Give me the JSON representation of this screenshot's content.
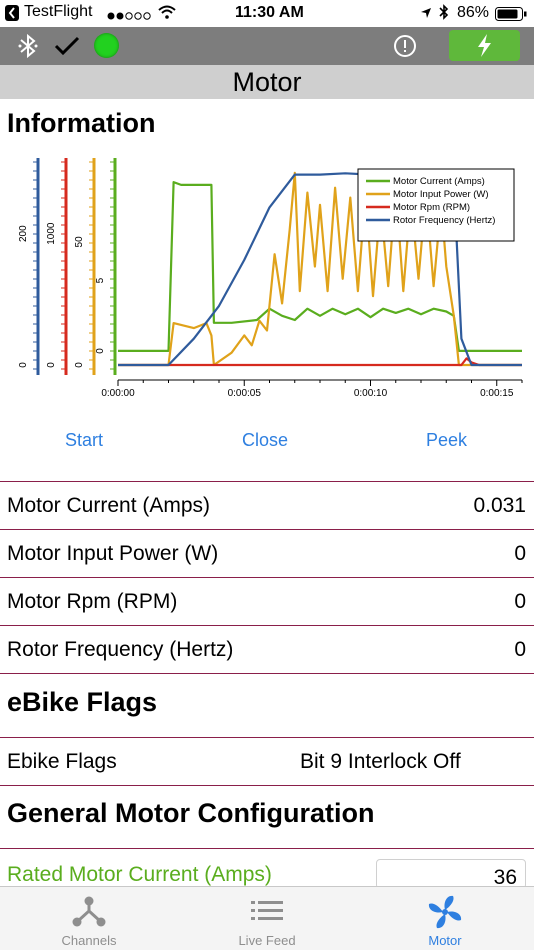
{
  "status_bar": {
    "back_app": "TestFlight",
    "time": "11:30 AM",
    "battery": "86%"
  },
  "page": {
    "title": "Motor"
  },
  "sections": {
    "information": "Information",
    "ebike_flags": "eBike Flags",
    "general_config": "General Motor Configuration"
  },
  "chart_data": {
    "type": "line",
    "x_ticks": [
      "0:00:00",
      "0:00:05",
      "0:00:10",
      "0:00:15"
    ],
    "xlim": [
      0,
      16
    ],
    "axes": [
      {
        "series": "Rotor Frequency (Hertz)",
        "color": "#2f5b9c",
        "ticks": [
          "0",
          "200"
        ],
        "ylim": [
          0,
          300
        ]
      },
      {
        "series": "Motor Rpm (RPM)",
        "color": "#d62a1e",
        "ticks": [
          "0",
          "1000"
        ],
        "ylim": [
          0,
          1500
        ]
      },
      {
        "series": "Motor Input Power (W)",
        "color": "#e0a21a",
        "ticks": [
          "0",
          "50"
        ],
        "ylim": [
          0,
          80
        ]
      },
      {
        "series": "Motor Current (Amps)",
        "color": "#5aad1e",
        "ticks": [
          "0",
          "5"
        ],
        "ylim": [
          -1,
          13
        ]
      }
    ],
    "legend_position": "top-right",
    "series": [
      {
        "name": "Motor Current (Amps)",
        "color": "#5aad1e",
        "points": [
          [
            0,
            0
          ],
          [
            2,
            0
          ],
          [
            2.2,
            12
          ],
          [
            2.5,
            11.8
          ],
          [
            3.5,
            11.8
          ],
          [
            3.7,
            11.8
          ],
          [
            3.8,
            2
          ],
          [
            4.5,
            2
          ],
          [
            5.5,
            2.2
          ],
          [
            6,
            3
          ],
          [
            6.5,
            2.5
          ],
          [
            7,
            2.2
          ],
          [
            7.5,
            3
          ],
          [
            8,
            2.5
          ],
          [
            8.5,
            3
          ],
          [
            9,
            2.6
          ],
          [
            9.5,
            3
          ],
          [
            10,
            2.4
          ],
          [
            10.5,
            3
          ],
          [
            11,
            2.7
          ],
          [
            11.5,
            3
          ],
          [
            12,
            2.6
          ],
          [
            12.5,
            3
          ],
          [
            13,
            2.8
          ],
          [
            13.3,
            2.5
          ],
          [
            13.5,
            0
          ],
          [
            16,
            0
          ]
        ]
      },
      {
        "name": "Motor Input Power (W)",
        "color": "#e0a21a",
        "points": [
          [
            0,
            0
          ],
          [
            2,
            0
          ],
          [
            2.2,
            17
          ],
          [
            3,
            15
          ],
          [
            3.5,
            17
          ],
          [
            3.7,
            12
          ],
          [
            3.8,
            0
          ],
          [
            4.5,
            5
          ],
          [
            5,
            12
          ],
          [
            5.3,
            8
          ],
          [
            5.6,
            18
          ],
          [
            5.9,
            14
          ],
          [
            6.2,
            45
          ],
          [
            6.5,
            25
          ],
          [
            6.8,
            55
          ],
          [
            7,
            78
          ],
          [
            7.2,
            30
          ],
          [
            7.5,
            70
          ],
          [
            7.8,
            40
          ],
          [
            8,
            65
          ],
          [
            8.3,
            30
          ],
          [
            8.6,
            72
          ],
          [
            8.9,
            35
          ],
          [
            9.2,
            68
          ],
          [
            9.5,
            30
          ],
          [
            9.8,
            70
          ],
          [
            10.1,
            28
          ],
          [
            10.4,
            66
          ],
          [
            10.7,
            32
          ],
          [
            11,
            72
          ],
          [
            11.3,
            30
          ],
          [
            11.6,
            68
          ],
          [
            11.9,
            35
          ],
          [
            12.2,
            70
          ],
          [
            12.5,
            32
          ],
          [
            12.8,
            66
          ],
          [
            13,
            40
          ],
          [
            13.3,
            20
          ],
          [
            13.5,
            0
          ],
          [
            16,
            0
          ]
        ]
      },
      {
        "name": "Motor Rpm (RPM)",
        "color": "#d62a1e",
        "points": [
          [
            0,
            0
          ],
          [
            13.6,
            0
          ],
          [
            13.8,
            50
          ],
          [
            14,
            20
          ],
          [
            14.3,
            0
          ],
          [
            16,
            0
          ]
        ]
      },
      {
        "name": "Rotor Frequency (Hertz)",
        "color": "#2f5b9c",
        "points": [
          [
            0,
            0
          ],
          [
            2,
            0
          ],
          [
            3,
            40
          ],
          [
            4,
            90
          ],
          [
            5,
            160
          ],
          [
            6,
            240
          ],
          [
            7,
            290
          ],
          [
            8,
            290
          ],
          [
            9,
            292
          ],
          [
            10,
            290
          ],
          [
            11,
            291
          ],
          [
            12,
            290
          ],
          [
            13,
            290
          ],
          [
            13.3,
            280
          ],
          [
            13.6,
            40
          ],
          [
            14,
            0
          ],
          [
            16,
            0
          ]
        ]
      }
    ]
  },
  "actions": {
    "start": "Start",
    "close": "Close",
    "peek": "Peek"
  },
  "rows": [
    {
      "label": "Motor Current (Amps)",
      "value": "0.031"
    },
    {
      "label": "Motor Input Power (W)",
      "value": "0"
    },
    {
      "label": "Motor Rpm (RPM)",
      "value": "0"
    },
    {
      "label": "Rotor Frequency (Hertz)",
      "value": "0"
    }
  ],
  "flags": {
    "label": "Ebike Flags",
    "value": "Bit 9 Interlock Off"
  },
  "config": {
    "rated_current_label": "Rated Motor Current (Amps)",
    "rated_current_value": "36"
  },
  "tabs": [
    {
      "label": "Channels"
    },
    {
      "label": "Live Feed"
    },
    {
      "label": "Motor"
    }
  ],
  "colors": {
    "accent": "#2e7fe0",
    "divider": "#8a1f4a",
    "toolbar": "#7d7d7d",
    "green_button": "#5fb83b",
    "indicator": "#22d11f"
  }
}
